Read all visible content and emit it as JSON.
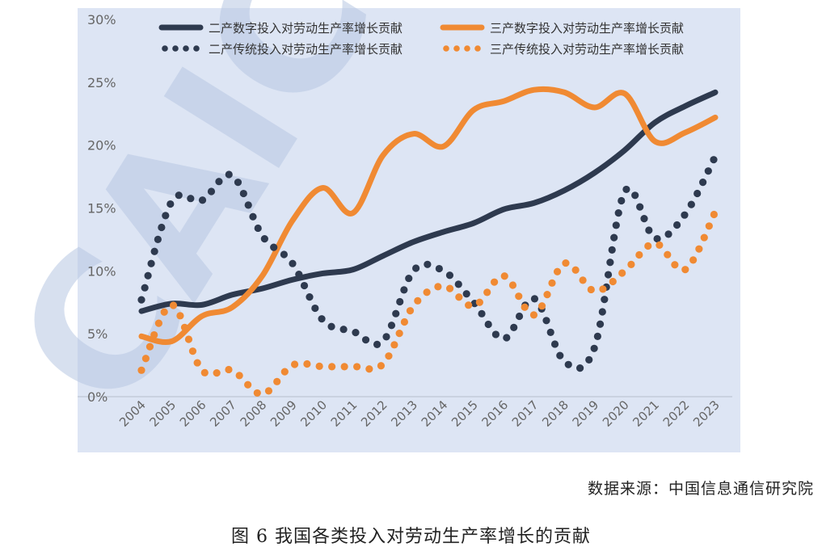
{
  "source_text": "数据来源：中国信息通信研究院",
  "caption": "图 6  我国各类投入对劳动生产率增长的贡献",
  "watermark_text": "CAICT",
  "chart_data": {
    "type": "line",
    "categories": [
      "2004",
      "2005",
      "2006",
      "2007",
      "2008",
      "2009",
      "2010",
      "2011",
      "2012",
      "2013",
      "2014",
      "2015",
      "2016",
      "2017",
      "2018",
      "2019",
      "2020",
      "2021",
      "2022",
      "2023"
    ],
    "ylim": [
      0,
      30
    ],
    "yticks": [
      "0%",
      "5%",
      "10%",
      "15%",
      "20%",
      "25%",
      "30%"
    ],
    "grid": false,
    "legend": "top",
    "series": [
      {
        "name": "二产数字投入对劳动生产率增长贡献",
        "style": "solid",
        "color": "#2e3a4f",
        "values": [
          6.8,
          7.4,
          7.3,
          8.1,
          8.6,
          9.3,
          9.8,
          10.1,
          11.2,
          12.3,
          13.1,
          13.8,
          14.9,
          15.4,
          16.4,
          17.8,
          19.6,
          21.8,
          23.1,
          24.2
        ]
      },
      {
        "name": "三产数字投入对劳动生产率增长贡献",
        "style": "solid",
        "color": "#f08a33",
        "values": [
          4.8,
          4.4,
          6.4,
          7.1,
          9.6,
          14.0,
          16.6,
          14.6,
          19.2,
          20.9,
          19.9,
          22.8,
          23.5,
          24.4,
          24.2,
          23.0,
          24.1,
          20.3,
          21.0,
          22.2
        ]
      },
      {
        "name": "二产传统投入对劳动生产率增长贡献",
        "style": "dotted",
        "color": "#2e3a4f",
        "values": [
          7.7,
          15.5,
          15.6,
          17.6,
          12.8,
          10.6,
          6.1,
          5.2,
          4.4,
          10.0,
          10.0,
          7.5,
          4.6,
          7.8,
          2.8,
          3.9,
          16.3,
          12.6,
          14.5,
          19.1
        ]
      },
      {
        "name": "三产传统投入对劳动生产率增长贡献",
        "style": "dotted",
        "color": "#f08a33",
        "values": [
          2.1,
          7.3,
          2.1,
          2.1,
          0.2,
          2.5,
          2.4,
          2.4,
          2.6,
          7.2,
          8.8,
          7.2,
          9.6,
          6.5,
          10.6,
          8.4,
          10.0,
          12.2,
          10.1,
          14.7
        ]
      }
    ]
  }
}
